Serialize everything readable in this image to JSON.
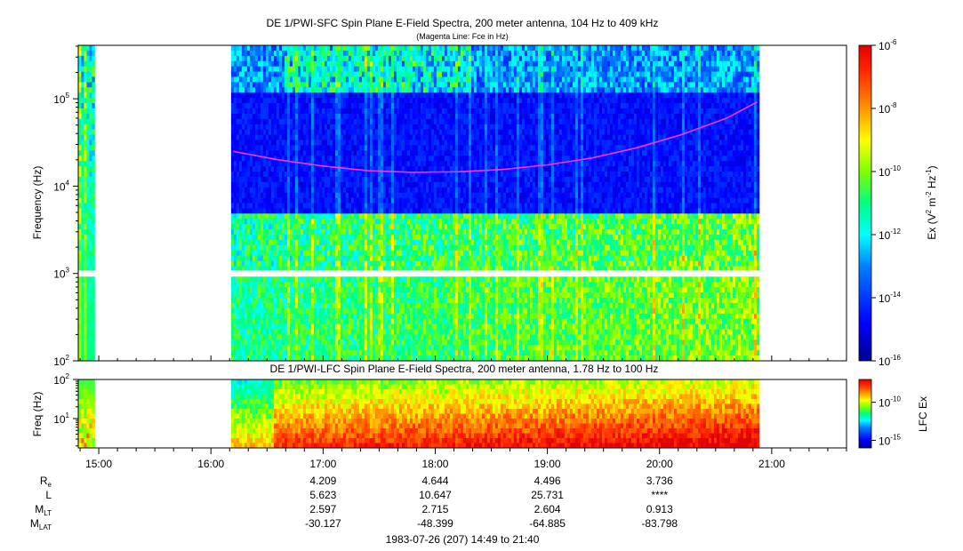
{
  "chart_data": [
    {
      "type": "heatmap",
      "title": "DE 1/PWI-SFC  Spin Plane E-Field Spectra, 200 meter antenna, 104 Hz to 409 kHz",
      "subtitle": "(Magenta Line: Fce in Hz)",
      "ylabel": "Frequency (Hz)",
      "yscale": "log",
      "ylim": [
        100,
        409000
      ],
      "yticks": [
        {
          "base": "10",
          "exp": "2",
          "value": 100
        },
        {
          "base": "10",
          "exp": "3",
          "value": 1000
        },
        {
          "base": "10",
          "exp": "4",
          "value": 10000
        },
        {
          "base": "10",
          "exp": "5",
          "value": 100000
        }
      ],
      "data_start_h": 14.82,
      "data_end_h": 20.88,
      "data_gap_h": [
        14.97,
        16.18
      ],
      "fce_line": {
        "color": "#ff33ff",
        "times_h": [
          16.2,
          16.6,
          17.0,
          17.4,
          17.8,
          18.2,
          18.6,
          19.0,
          19.4,
          19.8,
          20.2,
          20.6,
          20.87
        ],
        "values_hz": [
          25000,
          20000,
          17000,
          15000,
          14400,
          14600,
          15500,
          17500,
          21000,
          27500,
          39000,
          60000,
          92000
        ]
      },
      "colorbar": {
        "label_parts": {
          "pre": "Ex (V",
          "s1": "2",
          "mid1": " m",
          "s2": "-2",
          "mid2": " Hz",
          "s3": "-1",
          "post": ")"
        },
        "scale": "log",
        "range": [
          1e-16,
          1e-06
        ],
        "ticks": [
          {
            "base": "10",
            "exp": "-6",
            "value": 1e-06
          },
          {
            "base": "10",
            "exp": "-8",
            "value": 1e-08
          },
          {
            "base": "10",
            "exp": "-10",
            "value": 1e-10
          },
          {
            "base": "10",
            "exp": "-12",
            "value": 1e-12
          },
          {
            "base": "10",
            "exp": "-14",
            "value": 1e-14
          },
          {
            "base": "10",
            "exp": "-16",
            "value": 1e-16
          }
        ]
      }
    },
    {
      "type": "heatmap",
      "title": "DE 1/PWI-LFC  Spin Plane E-Field Spectra, 200 meter antenna, 1.78 Hz to 100 Hz",
      "ylabel": "Freq (Hz)",
      "yscale": "log",
      "ylim": [
        1.78,
        100
      ],
      "yticks": [
        {
          "base": "10",
          "exp": "2",
          "value": 100
        },
        {
          "base": "10",
          "exp": "1",
          "value": 10
        }
      ],
      "colorbar": {
        "label": "LFC Ex",
        "scale": "log",
        "range": [
          1e-16,
          1e-07
        ],
        "ticks": [
          {
            "base": "10",
            "exp": "-10",
            "value": 1e-10
          },
          {
            "base": "10",
            "exp": "-15",
            "value": 1e-15
          }
        ]
      }
    }
  ],
  "time_axis": {
    "start_h": 14.817,
    "end_h": 21.667,
    "major": [
      {
        "label": "15:00",
        "h": 15
      },
      {
        "label": "16:00",
        "h": 16
      },
      {
        "label": "17:00",
        "h": 17
      },
      {
        "label": "18:00",
        "h": 18
      },
      {
        "label": "19:00",
        "h": 19
      },
      {
        "label": "20:00",
        "h": 20
      },
      {
        "label": "21:00",
        "h": 21
      }
    ]
  },
  "ephemeris": {
    "rows": [
      {
        "main": "R",
        "sub": "e",
        "values": [
          "4.209",
          "4.644",
          "4.496",
          "3.736"
        ]
      },
      {
        "main": "L",
        "sub": "",
        "values": [
          "5.623",
          "10.647",
          "25.731",
          "****"
        ]
      },
      {
        "main": "M",
        "sub": "LT",
        "values": [
          "2.597",
          "2.715",
          "2.604",
          "0.913"
        ]
      },
      {
        "main": "M",
        "sub": "LAT",
        "values": [
          "-30.127",
          "-48.399",
          "-64.885",
          "-83.798"
        ]
      }
    ],
    "times_h": [
      17,
      18,
      19,
      20
    ]
  },
  "footer": {
    "date_range": "1983-07-26 (207) 14:49 to 21:40"
  }
}
